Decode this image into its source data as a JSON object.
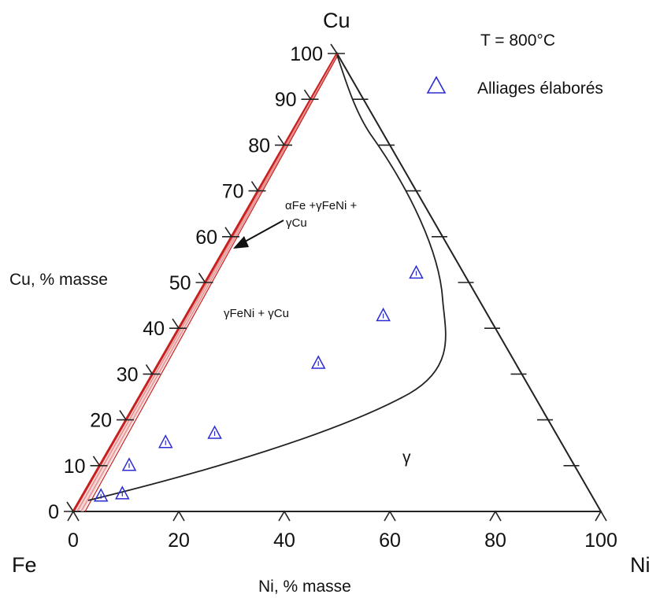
{
  "title": "T = 800°C",
  "legend": {
    "label": "Alliages élaborés",
    "marker_color": "#2b2bd6"
  },
  "corners": {
    "top": "Cu",
    "left": "Fe",
    "right": "Ni"
  },
  "axes": {
    "cu_title": "Cu, % masse",
    "ni_title": "Ni, % masse",
    "cu_ticks": [
      "0",
      "10",
      "20",
      "30",
      "40",
      "50",
      "60",
      "70",
      "80",
      "90",
      "100"
    ],
    "ni_ticks": [
      "0",
      "20",
      "40",
      "60",
      "80",
      "100"
    ]
  },
  "regions": {
    "three_phase_line1": "αFe +γFeNi +",
    "three_phase_line2": "γCu",
    "two_phase": "γFeNi + γCu",
    "single_phase": "γ"
  },
  "colors": {
    "boundary_red": "#c8201e",
    "boundary_pink": "#e9a0a0",
    "lines": "#222222"
  },
  "chart_data": {
    "type": "scatter",
    "title": "T = 800°C",
    "xlabel": "Ni, % masse",
    "ylabel": "Cu, % masse",
    "xlim": [
      0,
      100
    ],
    "ylim": [
      0,
      100
    ],
    "series": [
      {
        "name": "Alliages élaborés",
        "points": [
          {
            "ni": 3.6,
            "cu": 3.3
          },
          {
            "ni": 7.4,
            "cu": 3.8
          },
          {
            "ni": 5.6,
            "cu": 10.0
          },
          {
            "ni": 10.0,
            "cu": 15.0
          },
          {
            "ni": 18.3,
            "cu": 17.0
          },
          {
            "ni": 30.3,
            "cu": 32.3
          },
          {
            "ni": 37.4,
            "cu": 42.7
          },
          {
            "ni": 39.0,
            "cu": 52.0
          }
        ]
      }
    ]
  }
}
